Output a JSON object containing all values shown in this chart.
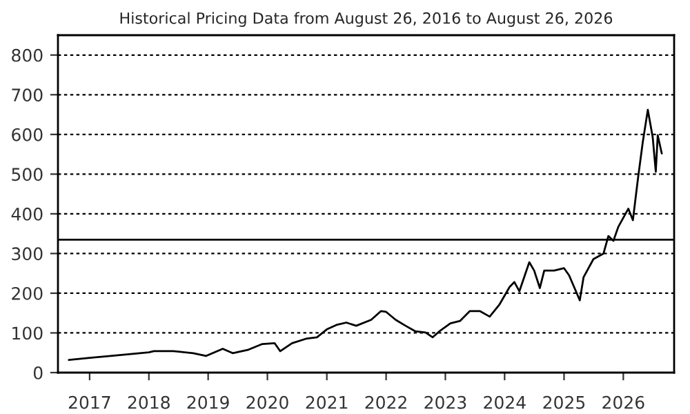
{
  "chart_data": {
    "type": "line",
    "title": "Historical Pricing Data from August 26, 2016 to August 26, 2026",
    "x": [
      "2016-08-26",
      "2017-01-01",
      "2017-06-01",
      "2018-01-01",
      "2018-02-01",
      "2018-06-01",
      "2018-10-01",
      "2018-12-20",
      "2019-04-01",
      "2019-06-01",
      "2019-09-01",
      "2019-12-01",
      "2020-02-15",
      "2020-03-20",
      "2020-06-01",
      "2020-09-01",
      "2020-11-01",
      "2021-01-01",
      "2021-03-01",
      "2021-05-01",
      "2021-07-01",
      "2021-10-01",
      "2021-12-01",
      "2022-01-01",
      "2022-03-01",
      "2022-05-01",
      "2022-07-01",
      "2022-09-01",
      "2022-10-15",
      "2022-12-01",
      "2023-02-01",
      "2023-04-01",
      "2023-06-01",
      "2023-08-01",
      "2023-10-01",
      "2023-12-01",
      "2024-02-01",
      "2024-03-01",
      "2024-04-01",
      "2024-06-01",
      "2024-07-01",
      "2024-08-05",
      "2024-09-01",
      "2024-11-01",
      "2025-01-01",
      "2025-02-01",
      "2025-04-08",
      "2025-05-01",
      "2025-07-01",
      "2025-09-01",
      "2025-10-01",
      "2025-11-01",
      "2025-12-01",
      "2026-02-01",
      "2026-03-01",
      "2026-04-01",
      "2026-05-01",
      "2026-06-01",
      "2026-07-01",
      "2026-07-20",
      "2026-08-01",
      "2026-08-26"
    ],
    "values": [
      32,
      37,
      43,
      51,
      54,
      54,
      49,
      42,
      60,
      49,
      57,
      72,
      74,
      54,
      74,
      86,
      89,
      109,
      120,
      126,
      118,
      133,
      155,
      153,
      133,
      118,
      104,
      101,
      89,
      106,
      124,
      130,
      155,
      155,
      141,
      172,
      216,
      228,
      205,
      278,
      257,
      213,
      257,
      257,
      263,
      245,
      182,
      240,
      286,
      300,
      344,
      332,
      367,
      413,
      384,
      488,
      581,
      662,
      593,
      506,
      598,
      552
    ],
    "color": "#000000",
    "xlim": [
      "2016-06-20",
      "2026-11-10"
    ],
    "xticks": [
      {
        "value": "2017-01-01",
        "label": "2017"
      },
      {
        "value": "2018-01-01",
        "label": "2018"
      },
      {
        "value": "2019-01-01",
        "label": "2019"
      },
      {
        "value": "2020-01-01",
        "label": "2020"
      },
      {
        "value": "2021-01-01",
        "label": "2021"
      },
      {
        "value": "2022-01-01",
        "label": "2022"
      },
      {
        "value": "2023-01-01",
        "label": "2023"
      },
      {
        "value": "2024-01-01",
        "label": "2024"
      },
      {
        "value": "2025-01-01",
        "label": "2025"
      },
      {
        "value": "2026-01-01",
        "label": "2026"
      }
    ],
    "ylim": [
      0,
      850
    ],
    "yticks": [
      0,
      100,
      200,
      300,
      400,
      500,
      600,
      700,
      800
    ],
    "grid": "y",
    "ref_lines": [
      {
        "axis": "y",
        "value": 335,
        "color": "#000000",
        "line_style": "solid"
      }
    ]
  }
}
